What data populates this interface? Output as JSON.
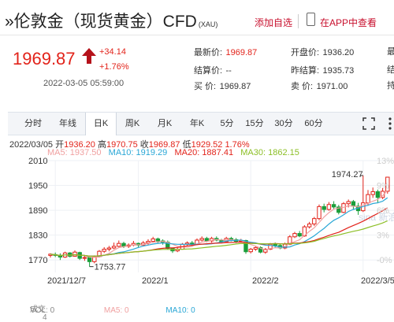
{
  "header": {
    "title": "»伦敦金（现货黄金）CFD",
    "symbol": "(XAU)",
    "add_favorite": "添加自选",
    "view_in_app": "在APP中查看"
  },
  "quote": {
    "price": "1969.87",
    "change": "+34.14",
    "change_pct": "+1.76%",
    "time": "2022-03-05 05:59:00",
    "fields": [
      {
        "label": "最新价:",
        "value": "1969.87",
        "red": true
      },
      {
        "label": "开盘价:",
        "value": "1936.20",
        "red": false
      },
      {
        "label": "结算价:",
        "value": "--",
        "red": false
      },
      {
        "label": "昨结算:",
        "value": "1935.73",
        "red": false
      },
      {
        "label": "买  价:",
        "value": "1969.87",
        "red": false
      },
      {
        "label": "卖  价:",
        "value": "1971.00",
        "red": false
      }
    ],
    "partial": {
      "row1": "最",
      "row2": "结",
      "row3": "持"
    }
  },
  "tabs": [
    "分时",
    "年线",
    "日K",
    "周K",
    "月K",
    "年K",
    "5分",
    "15分",
    "30分",
    "60分"
  ],
  "active_tab": "日K",
  "ohlc_line": {
    "date": "2022/03/05",
    "open_label": "开",
    "open": "1936.20",
    "high_label": "高",
    "high": "1970.75",
    "close_label": "收",
    "close": "1969.87",
    "low_label": "低",
    "low": "1929.52",
    "pct": "1.76%"
  },
  "ma_legend": {
    "ma5": "MA5: 1937.50",
    "ma10": "MA10: 1919.29",
    "ma20": "MA20: 1887.41",
    "ma30": "MA30: 1862.15"
  },
  "volume_legend": {
    "label": "成交",
    "vol": "VOL: 0",
    "ma5": "MA5: 0",
    "ma10": "MA10: 0",
    "scale": "4"
  },
  "watermark": "sina 新浪财经",
  "colors": {
    "up": "#e2231a",
    "down": "#1a9e3a",
    "ma5": "#f0a0a0",
    "ma10": "#2aa7d6",
    "ma20": "#e2231a",
    "ma30": "#8cbf26"
  },
  "chart_data": {
    "type": "candlestick",
    "y_ticks": [
      "2010",
      "1950",
      "1890",
      "1830",
      "1770"
    ],
    "right_ticks": [
      "13%",
      "9%",
      "6%",
      "3%",
      "-0%"
    ],
    "x_ticks": [
      "2021/12/7",
      "2022/1",
      "2022/2",
      "2022/3/5"
    ],
    "ylim": [
      1740,
      2010
    ],
    "annotations": {
      "high": "1974.27",
      "low": "1753.77"
    },
    "candles": [
      [
        1781,
        1784,
        1776,
        1786
      ],
      [
        1783,
        1781,
        1777,
        1788
      ],
      [
        1781,
        1777,
        1770,
        1786
      ],
      [
        1777,
        1787,
        1775,
        1790
      ],
      [
        1787,
        1779,
        1776,
        1789
      ],
      [
        1779,
        1789,
        1778,
        1793
      ],
      [
        1788,
        1774,
        1770,
        1790
      ],
      [
        1774,
        1776,
        1768,
        1781
      ],
      [
        1776,
        1766,
        1754,
        1779
      ],
      [
        1766,
        1778,
        1762,
        1781
      ],
      [
        1778,
        1791,
        1776,
        1794
      ],
      [
        1791,
        1796,
        1787,
        1801
      ],
      [
        1796,
        1799,
        1791,
        1804
      ],
      [
        1799,
        1803,
        1796,
        1812
      ],
      [
        1803,
        1810,
        1801,
        1817
      ],
      [
        1810,
        1803,
        1799,
        1814
      ],
      [
        1803,
        1806,
        1799,
        1810
      ],
      [
        1806,
        1810,
        1803,
        1816
      ],
      [
        1810,
        1806,
        1801,
        1812
      ],
      [
        1806,
        1811,
        1803,
        1816
      ],
      [
        1811,
        1815,
        1806,
        1820
      ],
      [
        1815,
        1821,
        1812,
        1826
      ],
      [
        1821,
        1816,
        1811,
        1824
      ],
      [
        1816,
        1813,
        1807,
        1820
      ],
      [
        1813,
        1798,
        1795,
        1817
      ],
      [
        1798,
        1792,
        1787,
        1800
      ],
      [
        1792,
        1796,
        1789,
        1800
      ],
      [
        1796,
        1808,
        1795,
        1811
      ],
      [
        1808,
        1811,
        1804,
        1815
      ],
      [
        1811,
        1808,
        1803,
        1816
      ],
      [
        1808,
        1818,
        1806,
        1822
      ],
      [
        1818,
        1822,
        1815,
        1827
      ],
      [
        1822,
        1816,
        1813,
        1826
      ],
      [
        1816,
        1822,
        1812,
        1826
      ],
      [
        1822,
        1818,
        1815,
        1827
      ],
      [
        1818,
        1814,
        1810,
        1821
      ],
      [
        1814,
        1822,
        1812,
        1826
      ],
      [
        1822,
        1819,
        1815,
        1826
      ],
      [
        1819,
        1815,
        1811,
        1823
      ],
      [
        1815,
        1817,
        1813,
        1821
      ],
      [
        1817,
        1790,
        1785,
        1819
      ],
      [
        1790,
        1796,
        1786,
        1799
      ],
      [
        1796,
        1800,
        1792,
        1803
      ],
      [
        1800,
        1789,
        1786,
        1803
      ],
      [
        1789,
        1796,
        1785,
        1799
      ],
      [
        1796,
        1808,
        1794,
        1811
      ],
      [
        1808,
        1805,
        1800,
        1812
      ],
      [
        1805,
        1799,
        1796,
        1809
      ],
      [
        1799,
        1808,
        1796,
        1812
      ],
      [
        1808,
        1826,
        1806,
        1830
      ],
      [
        1826,
        1834,
        1823,
        1838
      ],
      [
        1834,
        1828,
        1825,
        1840
      ],
      [
        1828,
        1850,
        1826,
        1854
      ],
      [
        1850,
        1857,
        1846,
        1862
      ],
      [
        1857,
        1870,
        1852,
        1874
      ],
      [
        1870,
        1899,
        1866,
        1904
      ],
      [
        1899,
        1892,
        1885,
        1906
      ],
      [
        1892,
        1904,
        1889,
        1910
      ],
      [
        1904,
        1898,
        1893,
        1912
      ],
      [
        1898,
        1885,
        1880,
        1903
      ],
      [
        1885,
        1906,
        1883,
        1910
      ],
      [
        1906,
        1911,
        1897,
        1916
      ],
      [
        1911,
        1900,
        1891,
        1915
      ],
      [
        1900,
        1889,
        1879,
        1908
      ],
      [
        1889,
        1908,
        1886,
        1974
      ],
      [
        1908,
        1928,
        1901,
        1939
      ],
      [
        1928,
        1935,
        1920,
        1945
      ],
      [
        1935,
        1921,
        1907,
        1940
      ],
      [
        1921,
        1936,
        1917,
        1944
      ],
      [
        1936,
        1970,
        1930,
        1971
      ]
    ]
  }
}
